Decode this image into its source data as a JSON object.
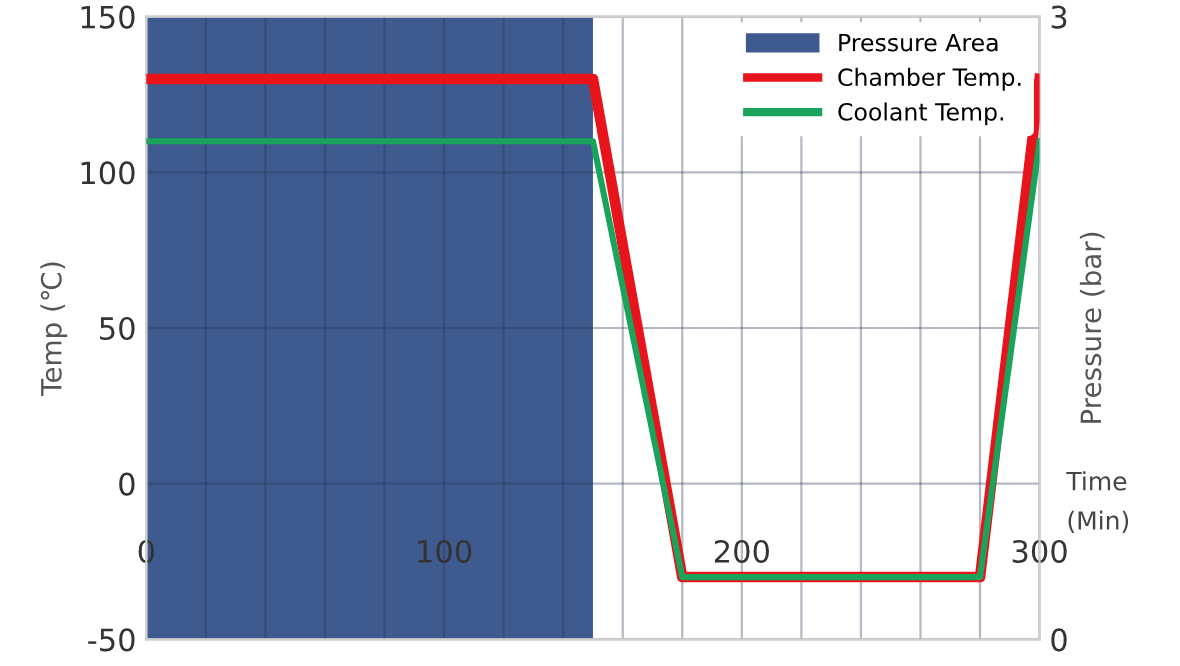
{
  "chart_data": {
    "type": "line",
    "xlabel": "Time\n(Min)",
    "ylabel": "Temp (℃)",
    "y2label": "Pressure (bar)",
    "xlim": [
      0,
      300
    ],
    "xticks": [
      {
        "value": 0,
        "label": "0"
      },
      {
        "value": 20,
        "label": null
      },
      {
        "value": 40,
        "label": null
      },
      {
        "value": 60,
        "label": null
      },
      {
        "value": 80,
        "label": null
      },
      {
        "value": 100,
        "label": "100"
      },
      {
        "value": 120,
        "label": null
      },
      {
        "value": 140,
        "label": null
      },
      {
        "value": 160,
        "label": null
      },
      {
        "value": 180,
        "label": null
      },
      {
        "value": 200,
        "label": "200"
      },
      {
        "value": 220,
        "label": null
      },
      {
        "value": 240,
        "label": null
      },
      {
        "value": 260,
        "label": null
      },
      {
        "value": 280,
        "label": null
      },
      {
        "value": 300,
        "label": "300"
      }
    ],
    "ylim": [
      -50,
      150
    ],
    "yticks": [
      -50,
      0,
      50,
      100,
      150
    ],
    "y2lim": [
      0,
      3
    ],
    "y2ticks": [
      0,
      3
    ],
    "series": [
      {
        "name": "Pressure Area",
        "type": "area",
        "axis": "y2",
        "color": "#3f5a8f",
        "x": [
          0,
          150
        ],
        "values": [
          3,
          3
        ]
      },
      {
        "name": "Chamber Temp.",
        "color": "#e8141c",
        "x": [
          0,
          150,
          180,
          280,
          300
        ],
        "values": [
          130,
          130,
          -30,
          -30,
          130
        ]
      },
      {
        "name": "Coolant Temp.",
        "color": "#1aa35a",
        "x": [
          0,
          150,
          180,
          280,
          300
        ],
        "values": [
          110,
          110,
          -30,
          -30,
          110
        ]
      }
    ],
    "grid": true,
    "legend": "top right",
    "line_style": "solid",
    "marker": "none"
  }
}
